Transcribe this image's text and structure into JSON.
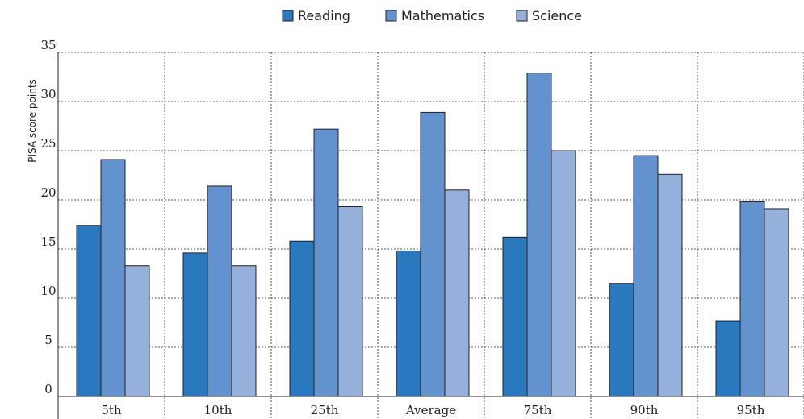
{
  "chart_data": {
    "type": "bar",
    "title": "",
    "xlabel": "",
    "ylabel": "PISA score points",
    "ylim": [
      0,
      35
    ],
    "yticks": [
      0,
      5,
      10,
      15,
      20,
      25,
      30,
      35
    ],
    "grid": true,
    "legend": "top-center",
    "categories": [
      "5th",
      "10th",
      "25th",
      "Average",
      "75th",
      "90th",
      "95th"
    ],
    "series": [
      {
        "name": "Reading",
        "color": "#2a78be",
        "values": [
          17.4,
          14.6,
          15.8,
          14.8,
          16.2,
          11.5,
          7.7
        ]
      },
      {
        "name": "Mathematics",
        "color": "#6393cf",
        "values": [
          24.1,
          21.4,
          27.2,
          28.9,
          32.9,
          24.5,
          19.8
        ]
      },
      {
        "name": "Science",
        "color": "#95b1db",
        "values": [
          13.3,
          13.3,
          19.3,
          21.0,
          25.0,
          22.6,
          19.1
        ]
      }
    ]
  }
}
